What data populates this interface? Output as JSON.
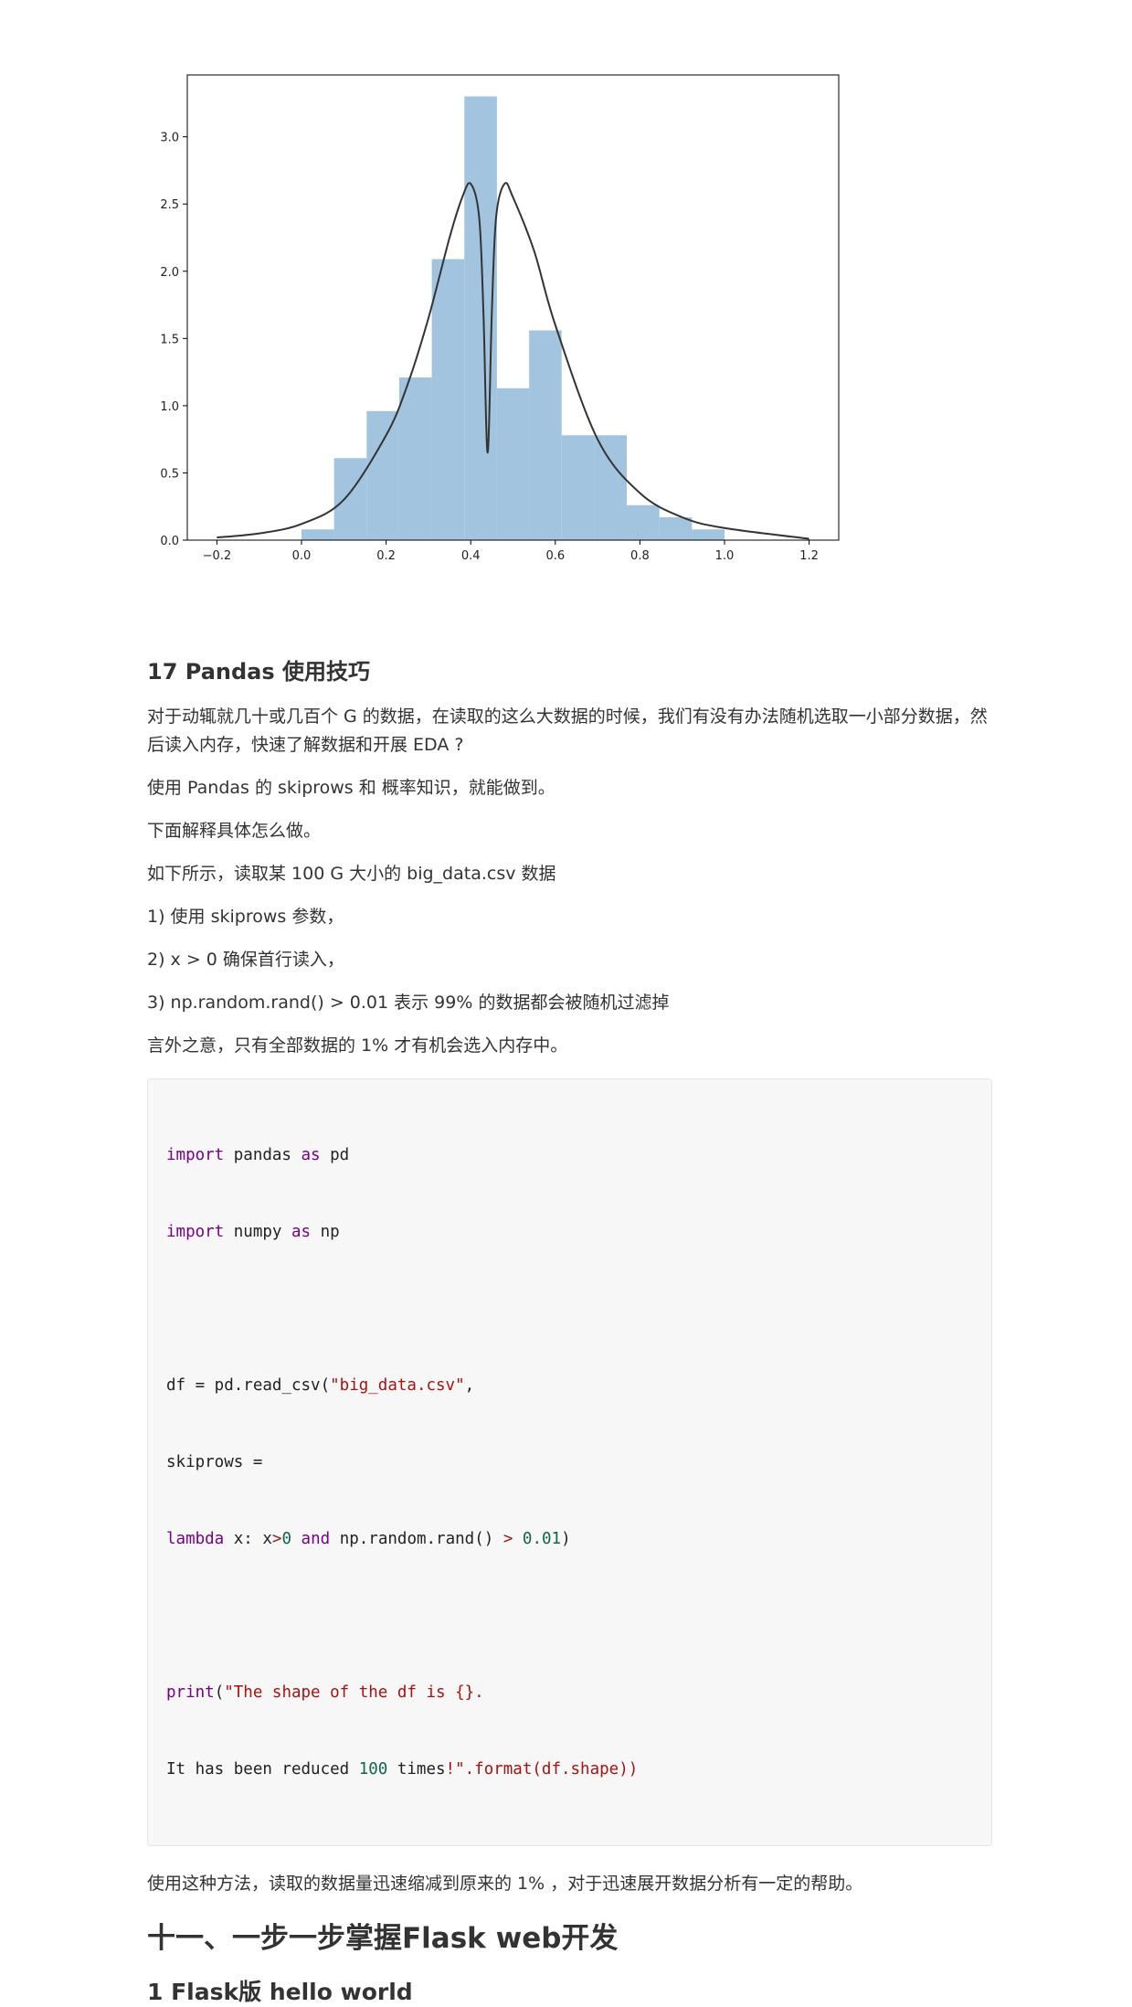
{
  "chart_data": {
    "type": "bar",
    "bins": [
      {
        "x0": 0.0,
        "x1": 0.077,
        "y": 0.08
      },
      {
        "x0": 0.077,
        "x1": 0.154,
        "y": 0.61
      },
      {
        "x0": 0.154,
        "x1": 0.231,
        "y": 0.96
      },
      {
        "x0": 0.231,
        "x1": 0.308,
        "y": 1.21
      },
      {
        "x0": 0.308,
        "x1": 0.385,
        "y": 2.09
      },
      {
        "x0": 0.385,
        "x1": 0.462,
        "y": 3.3
      },
      {
        "x0": 0.462,
        "x1": 0.538,
        "y": 1.13
      },
      {
        "x0": 0.538,
        "x1": 0.615,
        "y": 1.56
      },
      {
        "x0": 0.615,
        "x1": 0.692,
        "y": 0.78
      },
      {
        "x0": 0.692,
        "x1": 0.769,
        "y": 0.78
      },
      {
        "x0": 0.769,
        "x1": 0.846,
        "y": 0.26
      },
      {
        "x0": 0.846,
        "x1": 0.923,
        "y": 0.17
      },
      {
        "x0": 0.923,
        "x1": 1.0,
        "y": 0.08
      }
    ],
    "curve": {
      "x": [
        -0.2,
        -0.1,
        0.0,
        0.1,
        0.2,
        0.25,
        0.3,
        0.35,
        0.38,
        0.4,
        0.42,
        0.43,
        0.44,
        0.45,
        0.46,
        0.48,
        0.5,
        0.55,
        0.6,
        0.7,
        0.8,
        0.9,
        1.0,
        1.2
      ],
      "y": [
        0.02,
        0.05,
        0.12,
        0.3,
        0.78,
        1.15,
        1.65,
        2.25,
        2.55,
        2.65,
        2.4,
        1.7,
        0.65,
        1.7,
        2.4,
        2.65,
        2.55,
        2.15,
        1.6,
        0.75,
        0.35,
        0.17,
        0.09,
        0.01
      ]
    },
    "xlim": [
      -0.27,
      1.27
    ],
    "ylim": [
      0.0,
      3.46
    ],
    "xticks": [
      "−0.2",
      "0.0",
      "0.2",
      "0.4",
      "0.6",
      "0.8",
      "1.0",
      "1.2"
    ],
    "xtick_values": [
      -0.2,
      0.0,
      0.2,
      0.4,
      0.6,
      0.8,
      1.0,
      1.2
    ],
    "yticks": [
      "0.0",
      "0.5",
      "1.0",
      "1.5",
      "2.0",
      "2.5",
      "3.0"
    ],
    "ytick_values": [
      0.0,
      0.5,
      1.0,
      1.5,
      2.0,
      2.5,
      3.0
    ],
    "bar_color": "#a3c4df",
    "curve_color": "#333333",
    "grid": false
  },
  "section17": {
    "title": "17 Pandas 使用技巧",
    "p1": "对于动辄就几十或几百个 G 的数据，在读取的这么大数据的时候，我们有没有办法随机选取一小部分数据，然后读入内存，快速了解数据和开展 EDA ?",
    "p2": "使用 Pandas 的 skiprows 和 概率知识，就能做到。",
    "p3": "下面解释具体怎么做。",
    "p4": "如下所示，读取某 100 G 大小的 big_data.csv 数据",
    "p5": "1) 使用 skiprows 参数，",
    "p6": "2) x > 0 确保首行读入，",
    "p7": "3) np.random.rand() > 0.01 表示 99% 的数据都会被随机过滤掉",
    "p8": "言外之意，只有全部数据的 1% 才有机会选入内存中。",
    "p9": "使用这种方法，读取的数据量迅速缩减到原来的 1% ，对于迅速展开数据分析有一定的帮助。"
  },
  "code": {
    "l1": [
      {
        "t": "import",
        "c": "kw"
      },
      {
        "t": " pandas ",
        "c": ""
      },
      {
        "t": "as",
        "c": "kw"
      },
      {
        "t": " pd",
        "c": ""
      }
    ],
    "l2": [
      {
        "t": "import",
        "c": "kw"
      },
      {
        "t": " numpy ",
        "c": ""
      },
      {
        "t": "as",
        "c": "kw"
      },
      {
        "t": " np",
        "c": ""
      }
    ],
    "l3": [],
    "l4": [
      {
        "t": "df = pd.read_csv(",
        "c": ""
      },
      {
        "t": "\"big_data.csv\"",
        "c": "st"
      },
      {
        "t": ",",
        "c": ""
      }
    ],
    "l5": [
      {
        "t": "skiprows =",
        "c": ""
      }
    ],
    "l6": [
      {
        "t": "lambda",
        "c": "kw"
      },
      {
        "t": " x: x",
        "c": ""
      },
      {
        "t": ">",
        "c": "op"
      },
      {
        "t": "0",
        "c": "nm"
      },
      {
        "t": " ",
        "c": ""
      },
      {
        "t": "and",
        "c": "kw"
      },
      {
        "t": " np.random.rand() ",
        "c": ""
      },
      {
        "t": ">",
        "c": "op"
      },
      {
        "t": " ",
        "c": ""
      },
      {
        "t": "0.01",
        "c": "nm"
      },
      {
        "t": ")",
        "c": ""
      }
    ],
    "l7": [],
    "l8": [
      {
        "t": "print",
        "c": "kw"
      },
      {
        "t": "(",
        "c": ""
      },
      {
        "t": "\"The shape of the df is {}.",
        "c": "st"
      }
    ],
    "l9": [
      {
        "t": "It has been reduced ",
        "c": ""
      },
      {
        "t": "100",
        "c": "nm"
      },
      {
        "t": " times",
        "c": ""
      },
      {
        "t": "!\".format(df.shape))",
        "c": "st"
      }
    ]
  },
  "section11": {
    "title": "十一、一步一步掌握Flask web开发",
    "sub": "1 Flask版 hello world"
  }
}
